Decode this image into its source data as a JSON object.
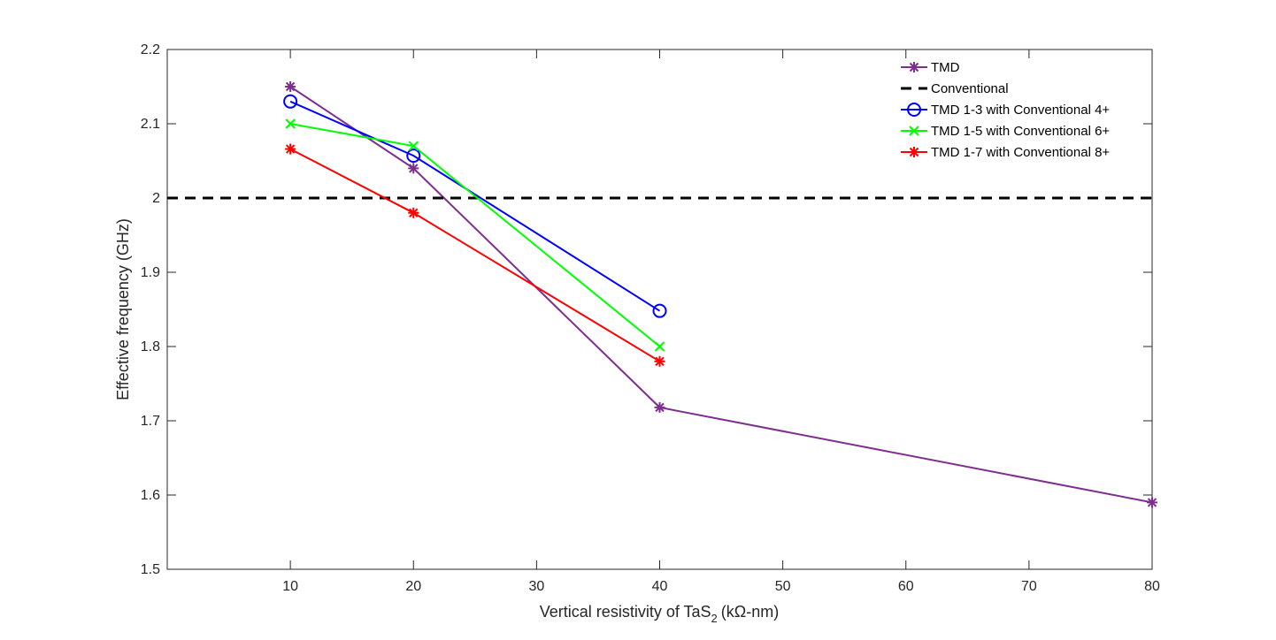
{
  "chart_data": {
    "type": "line",
    "title": "",
    "xlabel": "Vertical resistivity of TaS",
    "xlabel_subscript": "2",
    "xlabel_unit": "(kΩ-nm)",
    "ylabel": "Effective frequency (GHz)",
    "xlim": [
      0,
      80
    ],
    "ylim": [
      1.5,
      2.2
    ],
    "xticks": [
      10,
      20,
      30,
      40,
      50,
      60,
      70,
      80
    ],
    "yticks": [
      1.5,
      1.6,
      1.7,
      1.8,
      1.9,
      2,
      2.1,
      2.2
    ],
    "grid": false,
    "legend_position": "top-right",
    "series": [
      {
        "name": "TMD",
        "color": "#7E2F8E",
        "marker": "asterisk",
        "dash": "solid",
        "x": [
          10,
          20,
          40,
          80
        ],
        "y": [
          2.15,
          2.04,
          1.718,
          1.59
        ]
      },
      {
        "name": "Conventional",
        "color": "#000000",
        "marker": "none",
        "dash": "dashed",
        "x": [
          0,
          80
        ],
        "y": [
          2.0,
          2.0
        ]
      },
      {
        "name": "TMD 1-3 with Conventional 4+",
        "color": "#0000FF",
        "marker": "circle",
        "dash": "solid",
        "x": [
          10,
          20,
          40
        ],
        "y": [
          2.13,
          2.057,
          1.848
        ]
      },
      {
        "name": "TMD 1-5 with Conventional 6+",
        "color": "#00FF00",
        "marker": "x",
        "dash": "solid",
        "x": [
          10,
          20,
          40
        ],
        "y": [
          2.1,
          2.07,
          1.8
        ]
      },
      {
        "name": "TMD 1-7 with Conventional 8+",
        "color": "#FF0000",
        "marker": "asterisk",
        "dash": "solid",
        "x": [
          10,
          20,
          40
        ],
        "y": [
          2.066,
          1.98,
          1.78
        ]
      }
    ]
  }
}
